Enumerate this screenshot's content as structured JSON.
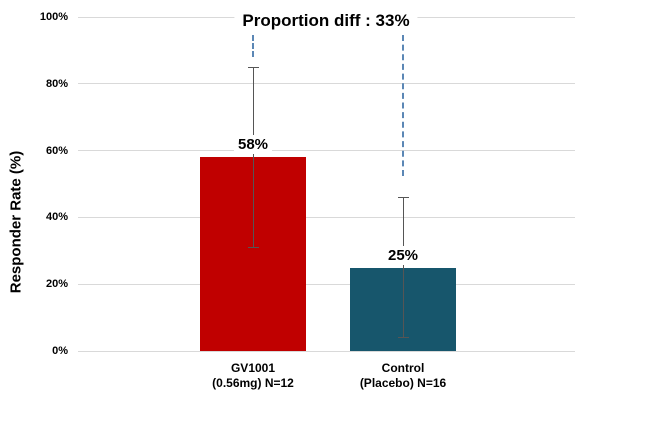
{
  "chart_data": {
    "type": "bar",
    "title": "Proportion diff : 33%",
    "ylabel": "Responder Rate (%)",
    "xlabel": "",
    "categories": [
      [
        "GV1001",
        "(0.56mg) N=12"
      ],
      [
        "Control",
        "(Placebo) N=16"
      ]
    ],
    "values": [
      58,
      25
    ],
    "value_labels": [
      "58%",
      "25%"
    ],
    "bar_colors": [
      "#c00000",
      "#17566c"
    ],
    "error_bars": [
      {
        "low": 31,
        "high": 85
      },
      {
        "low": 4,
        "high": 46
      }
    ],
    "ylim": [
      0,
      100
    ],
    "yticks": [
      0,
      20,
      40,
      60,
      80,
      100
    ],
    "ytick_labels": [
      "0%",
      "20%",
      "40%",
      "60%",
      "80%",
      "100%"
    ],
    "grid": true,
    "legend": "none",
    "annotations": {
      "dashed_lines": [
        {
          "category_index": 0,
          "from_pct": 94.6,
          "to_pct": 88.0
        },
        {
          "category_index": 1,
          "from_pct": 94.6,
          "to_pct": 52.5
        }
      ],
      "dash_color": "#5b87b5"
    },
    "colors": {
      "gridline": "#d9d9d9",
      "error_bar": "#555555",
      "text": "#000000",
      "background": "#ffffff"
    }
  }
}
